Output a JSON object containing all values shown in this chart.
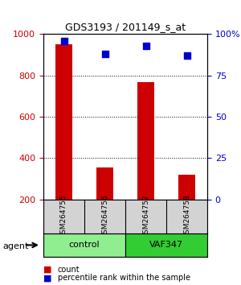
{
  "title": "GDS3193 / 201149_s_at",
  "samples": [
    "GSM264755",
    "GSM264756",
    "GSM264757",
    "GSM264758"
  ],
  "counts": [
    950,
    355,
    770,
    320
  ],
  "percentiles": [
    96,
    88,
    93,
    87
  ],
  "groups": [
    "control",
    "control",
    "VAF347",
    "VAF347"
  ],
  "group_labels": [
    "control",
    "VAF347"
  ],
  "group_colors": [
    "#90EE90",
    "#32CD32"
  ],
  "bar_color": "#CC0000",
  "dot_color": "#0000CC",
  "left_yticks": [
    200,
    400,
    600,
    800,
    1000
  ],
  "right_yticks": [
    0,
    25,
    50,
    75,
    100
  ],
  "ylim_left": [
    200,
    1000
  ],
  "ylim_right": [
    0,
    100
  ],
  "background_color": "#ffffff",
  "plot_bg_color": "#ffffff",
  "sample_box_color": "#d3d3d3",
  "agent_label": "agent"
}
